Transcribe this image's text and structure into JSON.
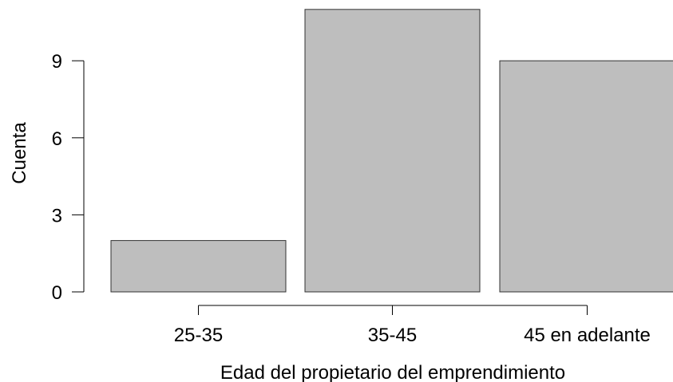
{
  "chart_data": {
    "type": "bar",
    "categories": [
      "25-35",
      "35-45",
      "45 en adelante"
    ],
    "values": [
      2,
      11,
      9
    ],
    "xlabel": "Edad del propietario del emprendimiento",
    "ylabel": "Cuenta",
    "yticks": [
      0,
      3,
      6,
      9
    ],
    "ylim": [
      0,
      11
    ],
    "grid": false,
    "legend": "none",
    "bar_color": "#bebebe",
    "bar_stroke": "#333333"
  }
}
